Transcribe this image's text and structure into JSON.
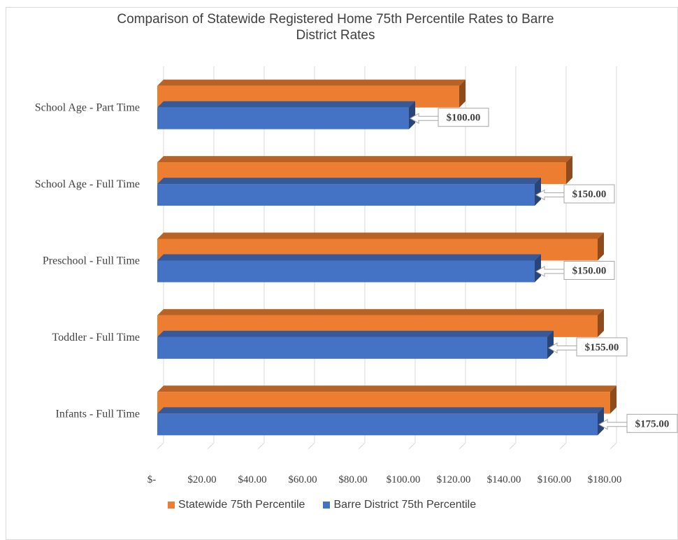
{
  "chart_data": {
    "type": "bar",
    "orientation": "horizontal",
    "title": "Comparison of Statewide Registered Home 75th Percentile Rates to Barre District Rates",
    "title_lines": [
      "Comparison of Statewide Registered Home 75th Percentile Rates to Barre",
      "District Rates"
    ],
    "categories": [
      "School Age - Part Time",
      "School Age - Full Time",
      "Preschool - Full Time",
      "Toddler - Full Time",
      "Infants - Full Time"
    ],
    "series": [
      {
        "name": "Statewide 75th Percentile",
        "color": "#ED7D31",
        "values": [
          120,
          162.5,
          175,
          175,
          180
        ]
      },
      {
        "name": "Barre District 75th Percentile",
        "color": "#4472C4",
        "values": [
          100,
          150,
          150,
          155,
          175
        ],
        "data_labels": [
          "$100.00",
          "$150.00",
          "$150.00",
          "$155.00",
          "$175.00"
        ]
      }
    ],
    "xlim": [
      0,
      180
    ],
    "x_ticks": [
      0,
      20,
      40,
      60,
      80,
      100,
      120,
      140,
      160,
      180
    ],
    "x_tick_labels": [
      "$-",
      "$20.00",
      "$40.00",
      "$60.00",
      "$80.00",
      "$100.00",
      "$120.00",
      "$140.00",
      "$160.00",
      "$180.00"
    ],
    "grid": "vertical",
    "legend_position": "bottom",
    "style": "3d-bar"
  }
}
